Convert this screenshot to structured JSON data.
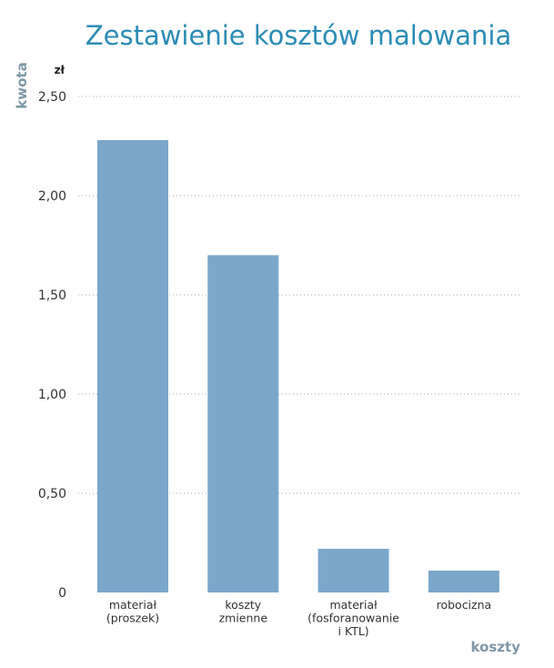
{
  "chart_data": {
    "type": "bar",
    "title": "Zestawienie kosztów malowania",
    "ylabel": "kwota",
    "xlabel": "koszty",
    "unit": "zł",
    "ylim": [
      0,
      2.5
    ],
    "yticks": [
      "0",
      "0,50",
      "1,00",
      "1,50",
      "2,00",
      "2,50"
    ],
    "ytick_values": [
      0,
      0.5,
      1.0,
      1.5,
      2.0,
      2.5
    ],
    "categories": [
      [
        "materiał",
        "(proszek)"
      ],
      [
        "koszty",
        "zmienne"
      ],
      [
        "materiał",
        "(fosforanowanie",
        "i KTL)"
      ],
      [
        "robocizna"
      ]
    ],
    "values": [
      2.28,
      1.7,
      0.22,
      0.11
    ],
    "grid": true,
    "colors": {
      "bar": "#7ba7cb",
      "title": "#2b8cb5",
      "axis_title": "#7f98a6"
    }
  }
}
